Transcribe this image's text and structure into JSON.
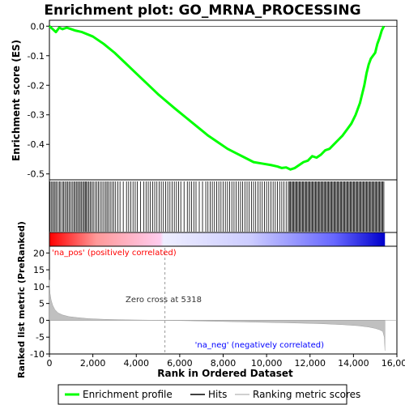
{
  "chart_data": {
    "type": "line",
    "title": "Enrichment plot: GO_MRNA_PROCESSING",
    "es_panel": {
      "ylabel": "Enrichment score (ES)",
      "ylim": [
        -0.52,
        0.02
      ],
      "yticks": [
        "0.0",
        "-0.1",
        "-0.2",
        "-0.3",
        "-0.4",
        "-0.5"
      ],
      "ytick_values": [
        0.0,
        -0.1,
        -0.2,
        -0.3,
        -0.4,
        -0.5
      ],
      "series": [
        {
          "name": "Enrichment profile",
          "color": "#00ff00",
          "x": [
            0,
            150,
            300,
            450,
            600,
            800,
            1000,
            1200,
            1500,
            2000,
            2500,
            3000,
            3500,
            4000,
            4500,
            5000,
            5318,
            5800,
            6300,
            6800,
            7300,
            7800,
            8200,
            8600,
            9000,
            9400,
            9800,
            10200,
            10500,
            10700,
            10900,
            11100,
            11300,
            11500,
            11700,
            11900,
            12100,
            12300,
            12500,
            12700,
            12900,
            13100,
            13300,
            13500,
            13700,
            13900,
            14100,
            14300,
            14500,
            14600,
            14700,
            14800,
            14900,
            15000,
            15100,
            15200,
            15300,
            15400
          ],
          "y": [
            0.0,
            -0.01,
            -0.02,
            -0.005,
            -0.01,
            -0.005,
            -0.01,
            -0.015,
            -0.02,
            -0.035,
            -0.06,
            -0.09,
            -0.125,
            -0.16,
            -0.195,
            -0.23,
            -0.25,
            -0.28,
            -0.31,
            -0.34,
            -0.37,
            -0.395,
            -0.415,
            -0.43,
            -0.445,
            -0.46,
            -0.465,
            -0.47,
            -0.475,
            -0.48,
            -0.478,
            -0.485,
            -0.48,
            -0.47,
            -0.46,
            -0.455,
            -0.44,
            -0.445,
            -0.435,
            -0.42,
            -0.415,
            -0.4,
            -0.385,
            -0.37,
            -0.35,
            -0.33,
            -0.3,
            -0.26,
            -0.2,
            -0.16,
            -0.13,
            -0.11,
            -0.1,
            -0.09,
            -0.06,
            -0.04,
            -0.015,
            0.0
          ]
        }
      ]
    },
    "hits_panel": {
      "label": "Hits",
      "color": "#000000",
      "positions": [
        20,
        80,
        140,
        200,
        260,
        320,
        390,
        460,
        520,
        600,
        660,
        720,
        790,
        850,
        910,
        980,
        1050,
        1120,
        1180,
        1240,
        1300,
        1360,
        1420,
        1480,
        1540,
        1600,
        1650,
        1700,
        1760,
        1820,
        1880,
        1950,
        2020,
        2100,
        2180,
        2260,
        2340,
        2420,
        2500,
        2580,
        2650,
        2720,
        2800,
        2880,
        2960,
        3050,
        3150,
        3250,
        3400,
        3550,
        3650,
        3750,
        3850,
        3950,
        4050,
        4200,
        4350,
        4450,
        4550,
        4650,
        4750,
        4850,
        4950,
        5050,
        5150,
        5250,
        5350,
        5450,
        5550,
        5650,
        5750,
        5850,
        5950,
        6050,
        6200,
        6350,
        6450,
        6550,
        6650,
        6750,
        6900,
        7050,
        7200,
        7300,
        7400,
        7500,
        7600,
        7700,
        7800,
        7900,
        8000,
        8100,
        8200,
        8300,
        8400,
        8500,
        8600,
        8700,
        8800,
        8900,
        9000,
        9100,
        9200,
        9300,
        9400,
        9500,
        9600,
        9700,
        9800,
        9900,
        10000,
        10100,
        10200,
        10300,
        10400,
        10500,
        10600,
        10700,
        10800,
        10900,
        11000,
        11050,
        11100,
        11150,
        11200,
        11250,
        11300,
        11350,
        11400,
        11450,
        11500,
        11550,
        11600,
        11650,
        11700,
        11750,
        11800,
        11850,
        11900,
        11950,
        12000,
        12050,
        12100,
        12150,
        12200,
        12250,
        12300,
        12350,
        12400,
        12450,
        12500,
        12550,
        12600,
        12650,
        12700,
        12750,
        12800,
        12850,
        12900,
        12950,
        13000,
        13050,
        13100,
        13150,
        13200,
        13250,
        13300,
        13350,
        13400,
        13450,
        13500,
        13550,
        13600,
        13650,
        13700,
        13750,
        13800,
        13850,
        13900,
        13950,
        14000,
        14050,
        14100,
        14150,
        14200,
        14250,
        14300,
        14350,
        14400,
        14450,
        14500,
        14550,
        14600,
        14650,
        14700,
        14750,
        14800,
        14850,
        14900,
        14950,
        15000,
        15050,
        15100,
        15150,
        15200,
        15250,
        15300,
        15350,
        15400
      ]
    },
    "metric_panel": {
      "ylabel": "Ranked list metric (PreRanked)",
      "ylim": [
        -10,
        22
      ],
      "yticks": [
        "20",
        "15",
        "10",
        "5",
        "0",
        "-5",
        "-10"
      ],
      "ytick_values": [
        20,
        15,
        10,
        5,
        0,
        -5,
        -10
      ],
      "series": [
        {
          "name": "Ranking metric scores",
          "color": "#c0c0c0",
          "x": [
            0,
            30,
            80,
            150,
            250,
            400,
            600,
            900,
            1300,
            1800,
            2500,
            3500,
            4500,
            5318,
            6500,
            8000,
            9500,
            11000,
            12500,
            13500,
            14200,
            14700,
            15000,
            15200,
            15350,
            15420,
            15450
          ],
          "y": [
            12,
            8,
            6,
            4.5,
            3.2,
            2.2,
            1.6,
            1.1,
            0.8,
            0.5,
            0.3,
            0.15,
            0.05,
            0.0,
            -0.15,
            -0.35,
            -0.55,
            -0.75,
            -1.0,
            -1.3,
            -1.6,
            -2.0,
            -2.4,
            -2.8,
            -3.3,
            -5.0,
            -9.0
          ]
        }
      ],
      "annotations": {
        "pos": "'na_pos' (positively correlated)",
        "neg": "'na_neg' (negatively correlated)",
        "zero_cross": "Zero cross at 5318",
        "zero_cross_value": 5318,
        "pos_color": "#ff0000",
        "neg_color": "#0000ff"
      }
    },
    "xaxis": {
      "label": "Rank in Ordered Dataset",
      "xlim": [
        0,
        16000
      ],
      "ticks": [
        "0",
        "2,000",
        "4,000",
        "6,000",
        "8,000",
        "10,000",
        "12,000",
        "14,000",
        "16,000"
      ],
      "tick_values": [
        0,
        2000,
        4000,
        6000,
        8000,
        10000,
        12000,
        14000,
        16000
      ],
      "dataset_size": 15450
    },
    "legend": {
      "placement": "bottom",
      "items": [
        {
          "label": "Enrichment profile",
          "color": "#00ff00"
        },
        {
          "label": "Hits",
          "color": "#000000"
        },
        {
          "label": "Ranking metric scores",
          "color": "#c0c0c0"
        }
      ]
    }
  }
}
